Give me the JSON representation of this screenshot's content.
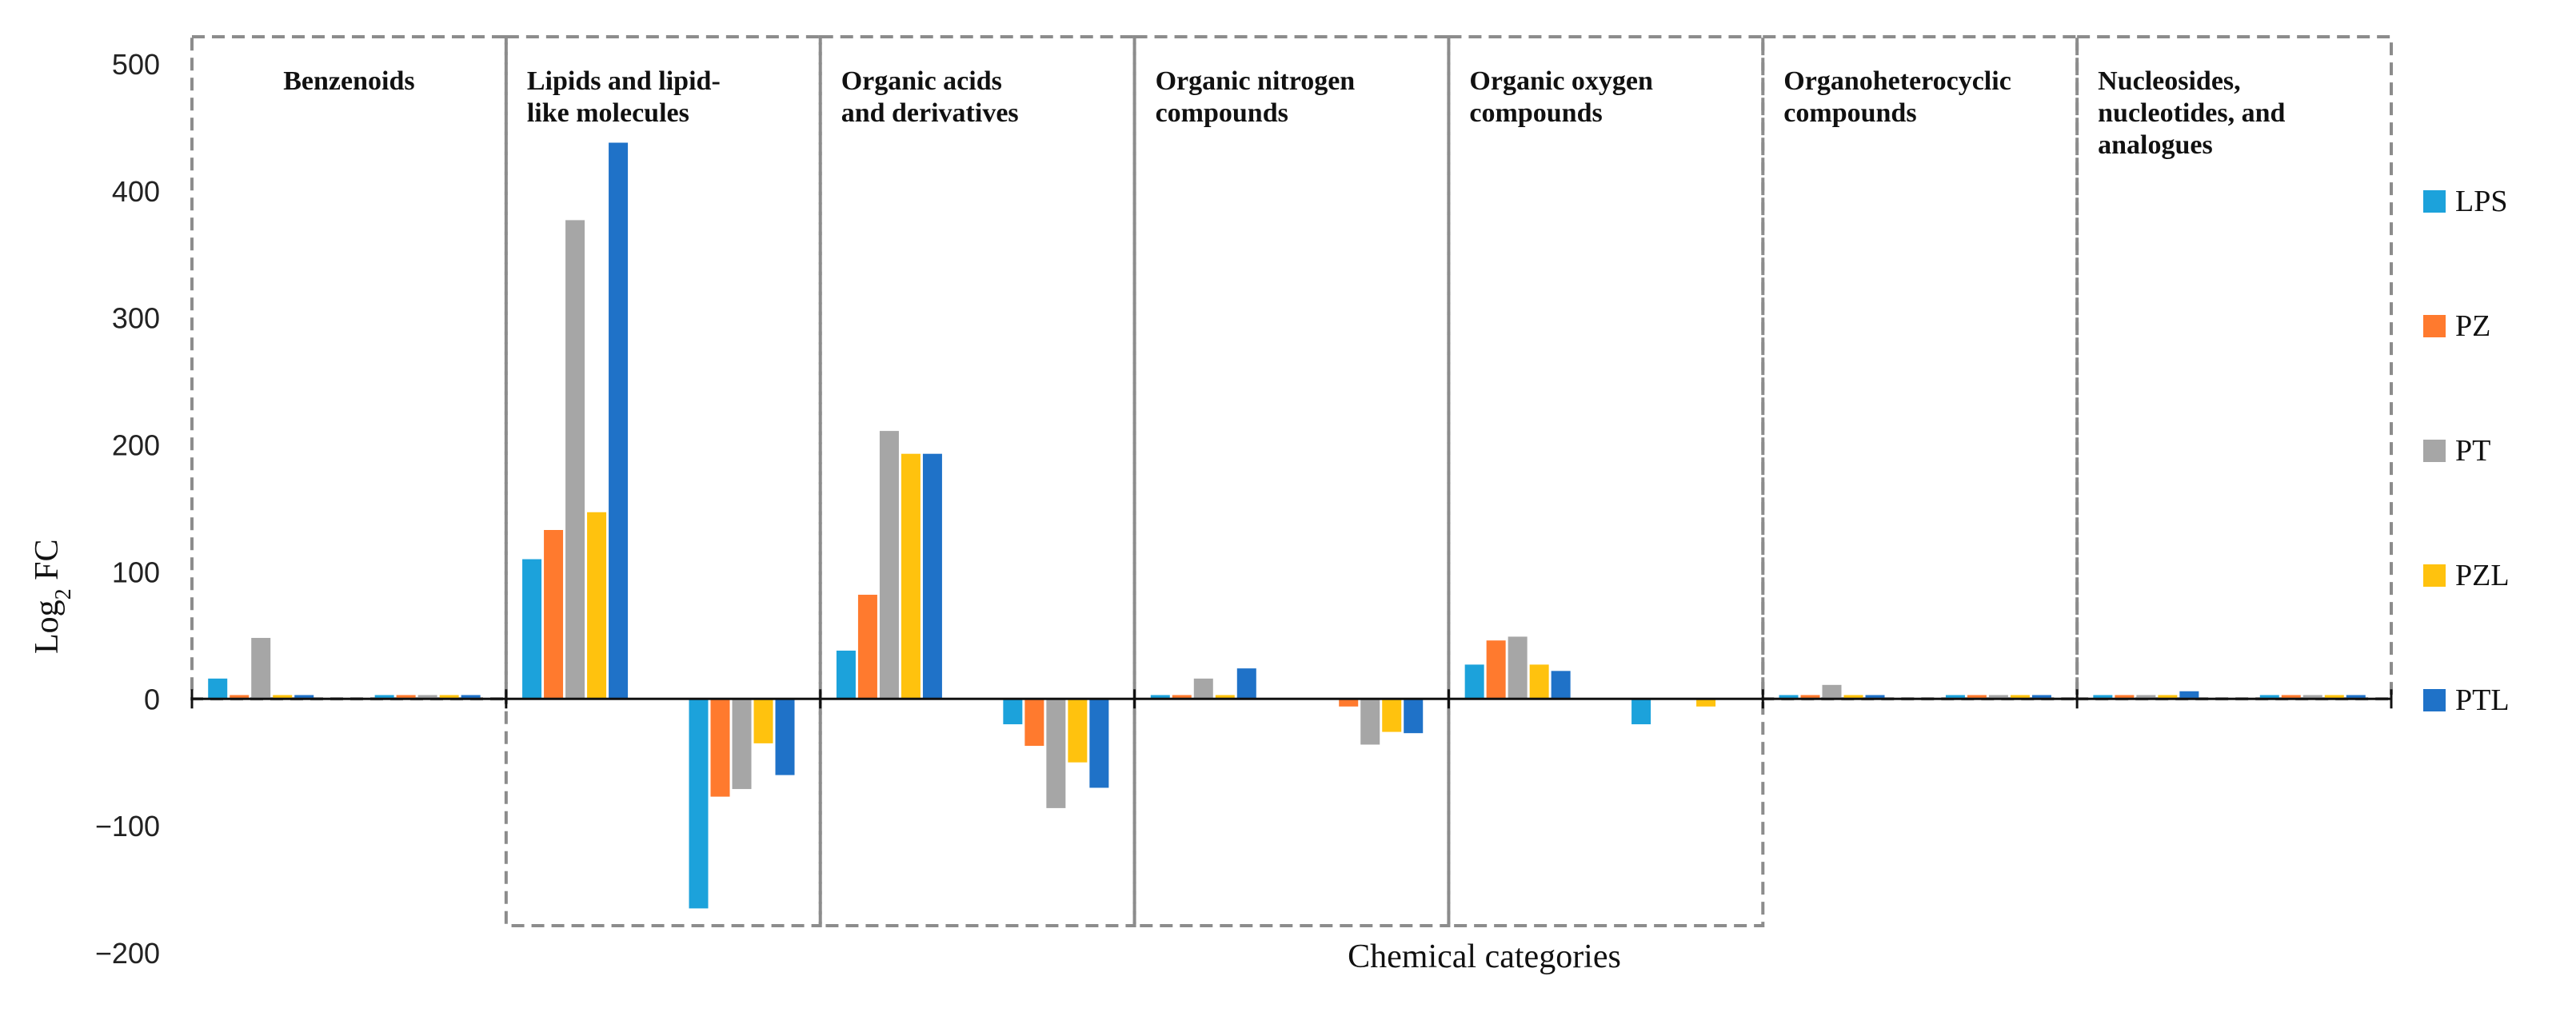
{
  "chart_data": {
    "type": "bar",
    "title": "",
    "xlabel": "Chemical categories",
    "ylabel_main": "Log",
    "ylabel_sub": "2",
    "ylabel_tail": " FC",
    "ylim": [
      -200,
      500
    ],
    "yticks": [
      500,
      400,
      300,
      200,
      100,
      0,
      -100,
      -200
    ],
    "ytick_labels": [
      "500",
      "400",
      "300",
      "200",
      "100",
      "0",
      "−100",
      "−200"
    ],
    "grid": false,
    "legend_position": "right",
    "series": [
      {
        "name": "LPS",
        "color": "#1ca2db"
      },
      {
        "name": "PZ",
        "color": "#ff7a2e"
      },
      {
        "name": "PT",
        "color": "#a6a6a6"
      },
      {
        "name": "PZL",
        "color": "#ffc20e"
      },
      {
        "name": "PTL",
        "color": "#1f72c8"
      }
    ],
    "panels": [
      {
        "label_lines": [
          "Benzenoids"
        ],
        "groups": [
          [
            16,
            3,
            48,
            3,
            3
          ],
          [
            3,
            3,
            3,
            3,
            3
          ]
        ]
      },
      {
        "label_lines": [
          "Lipids and lipid-",
          "like molecules"
        ],
        "groups": [
          [
            110,
            133,
            377,
            147,
            438
          ],
          [
            -165,
            -77,
            -71,
            -35,
            -60
          ]
        ]
      },
      {
        "label_lines": [
          "Organic acids",
          "and derivatives"
        ],
        "groups": [
          [
            38,
            82,
            211,
            193,
            193
          ],
          [
            -20,
            -37,
            -86,
            -50,
            -70
          ]
        ]
      },
      {
        "label_lines": [
          "Organic nitrogen",
          "compounds"
        ],
        "groups": [
          [
            3,
            3,
            16,
            3,
            24
          ],
          [
            0,
            -6,
            -36,
            -26,
            -27
          ]
        ]
      },
      {
        "label_lines": [
          "Organic oxygen",
          "compounds"
        ],
        "groups": [
          [
            27,
            46,
            49,
            27,
            22
          ],
          [
            -20,
            0,
            0,
            -6,
            0
          ]
        ]
      },
      {
        "label_lines": [
          "Organoheterocyclic",
          "compounds"
        ],
        "groups": [
          [
            3,
            3,
            11,
            3,
            3
          ],
          [
            3,
            3,
            3,
            3,
            3
          ]
        ]
      },
      {
        "label_lines": [
          "Nucleosides,",
          "nucleotides, and",
          "analogues"
        ],
        "groups": [
          [
            3,
            3,
            3,
            3,
            6
          ],
          [
            3,
            3,
            3,
            3,
            3
          ]
        ]
      }
    ]
  }
}
